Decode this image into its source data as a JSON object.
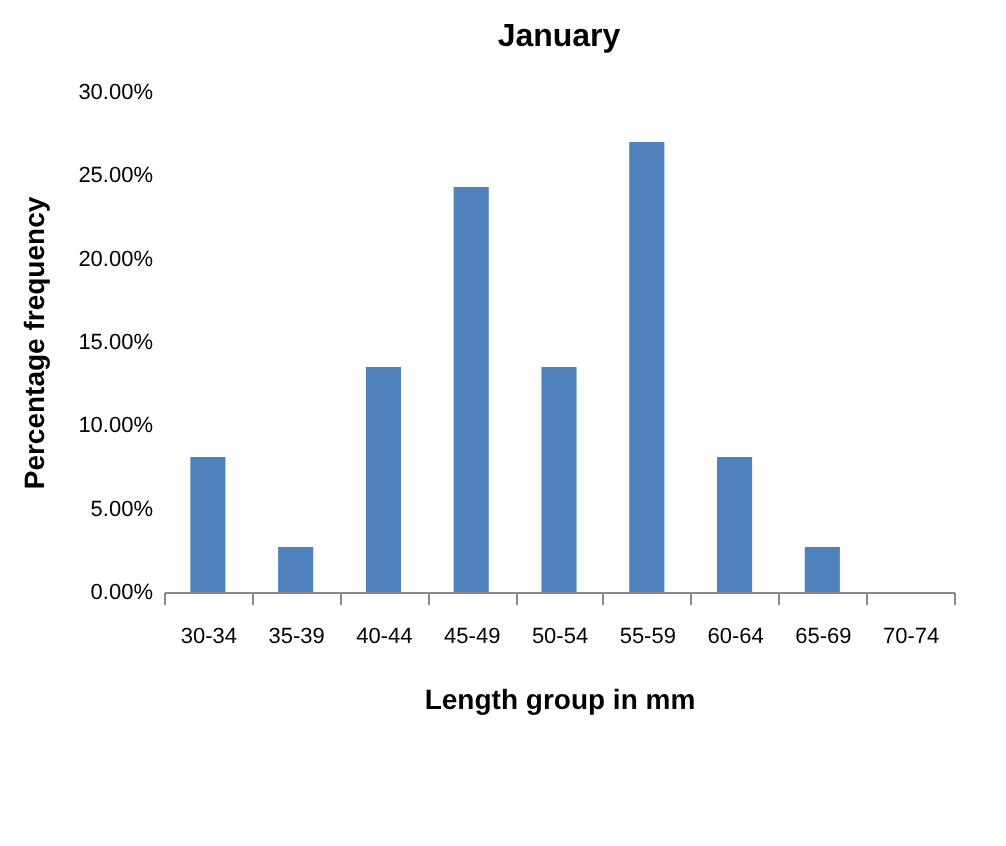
{
  "chart_data": {
    "type": "bar",
    "title": "January",
    "xlabel": "Length group in mm",
    "ylabel": "Percentage frequency",
    "categories": [
      "30-34",
      "35-39",
      "40-44",
      "45-49",
      "50-54",
      "55-59",
      "60-64",
      "65-69",
      "70-74"
    ],
    "values": [
      8.1,
      2.7,
      13.5,
      24.3,
      13.5,
      27.0,
      8.1,
      2.7,
      0
    ],
    "color": "#4f81bd",
    "ylim": [
      0,
      30
    ],
    "yticks": [
      {
        "value": 0,
        "label": "0.00%"
      },
      {
        "value": 5,
        "label": "5.00%"
      },
      {
        "value": 10,
        "label": "10.00%"
      },
      {
        "value": 15,
        "label": "15.00%"
      },
      {
        "value": 20,
        "label": "20.00%"
      },
      {
        "value": 25,
        "label": "25.00%"
      },
      {
        "value": 30,
        "label": "30.00%"
      }
    ]
  }
}
